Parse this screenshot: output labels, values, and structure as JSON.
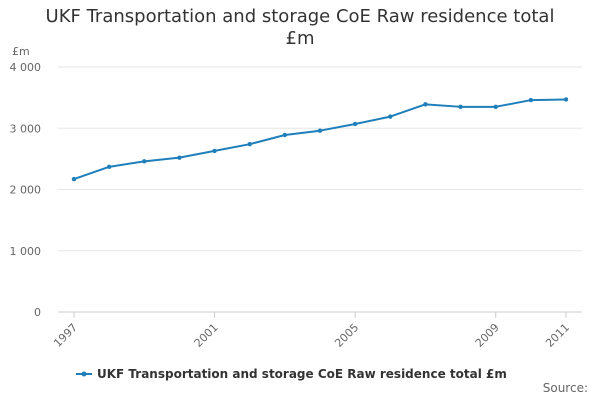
{
  "chart_data": {
    "type": "line",
    "title_lines": [
      "UKF Transportation and storage CoE Raw residence total",
      "£m"
    ],
    "y_unit_label": "£m",
    "x": [
      1997,
      1998,
      1999,
      2000,
      2001,
      2002,
      2003,
      2004,
      2005,
      2006,
      2007,
      2008,
      2009,
      2010,
      2011
    ],
    "x_tick_values": [
      1997,
      2001,
      2005,
      2009,
      2011
    ],
    "x_tick_labels": [
      "1997",
      "2001",
      "2005",
      "2009",
      "2011"
    ],
    "ylim": [
      0,
      4000
    ],
    "y_tick_values": [
      0,
      1000,
      2000,
      3000,
      4000
    ],
    "y_tick_labels": [
      "0",
      "1 000",
      "2 000",
      "3 000",
      "4 000"
    ],
    "grid": "horizontal",
    "legend_position": "bottom",
    "series": [
      {
        "name": "UKF Transportation and storage CoE Raw residence total £m",
        "color": "#1f7fba",
        "values": [
          2170,
          2370,
          2460,
          2520,
          2630,
          2740,
          2890,
          2960,
          3070,
          3190,
          3390,
          3350,
          3350,
          3460,
          3470
        ]
      }
    ],
    "source_label": "Source:"
  }
}
